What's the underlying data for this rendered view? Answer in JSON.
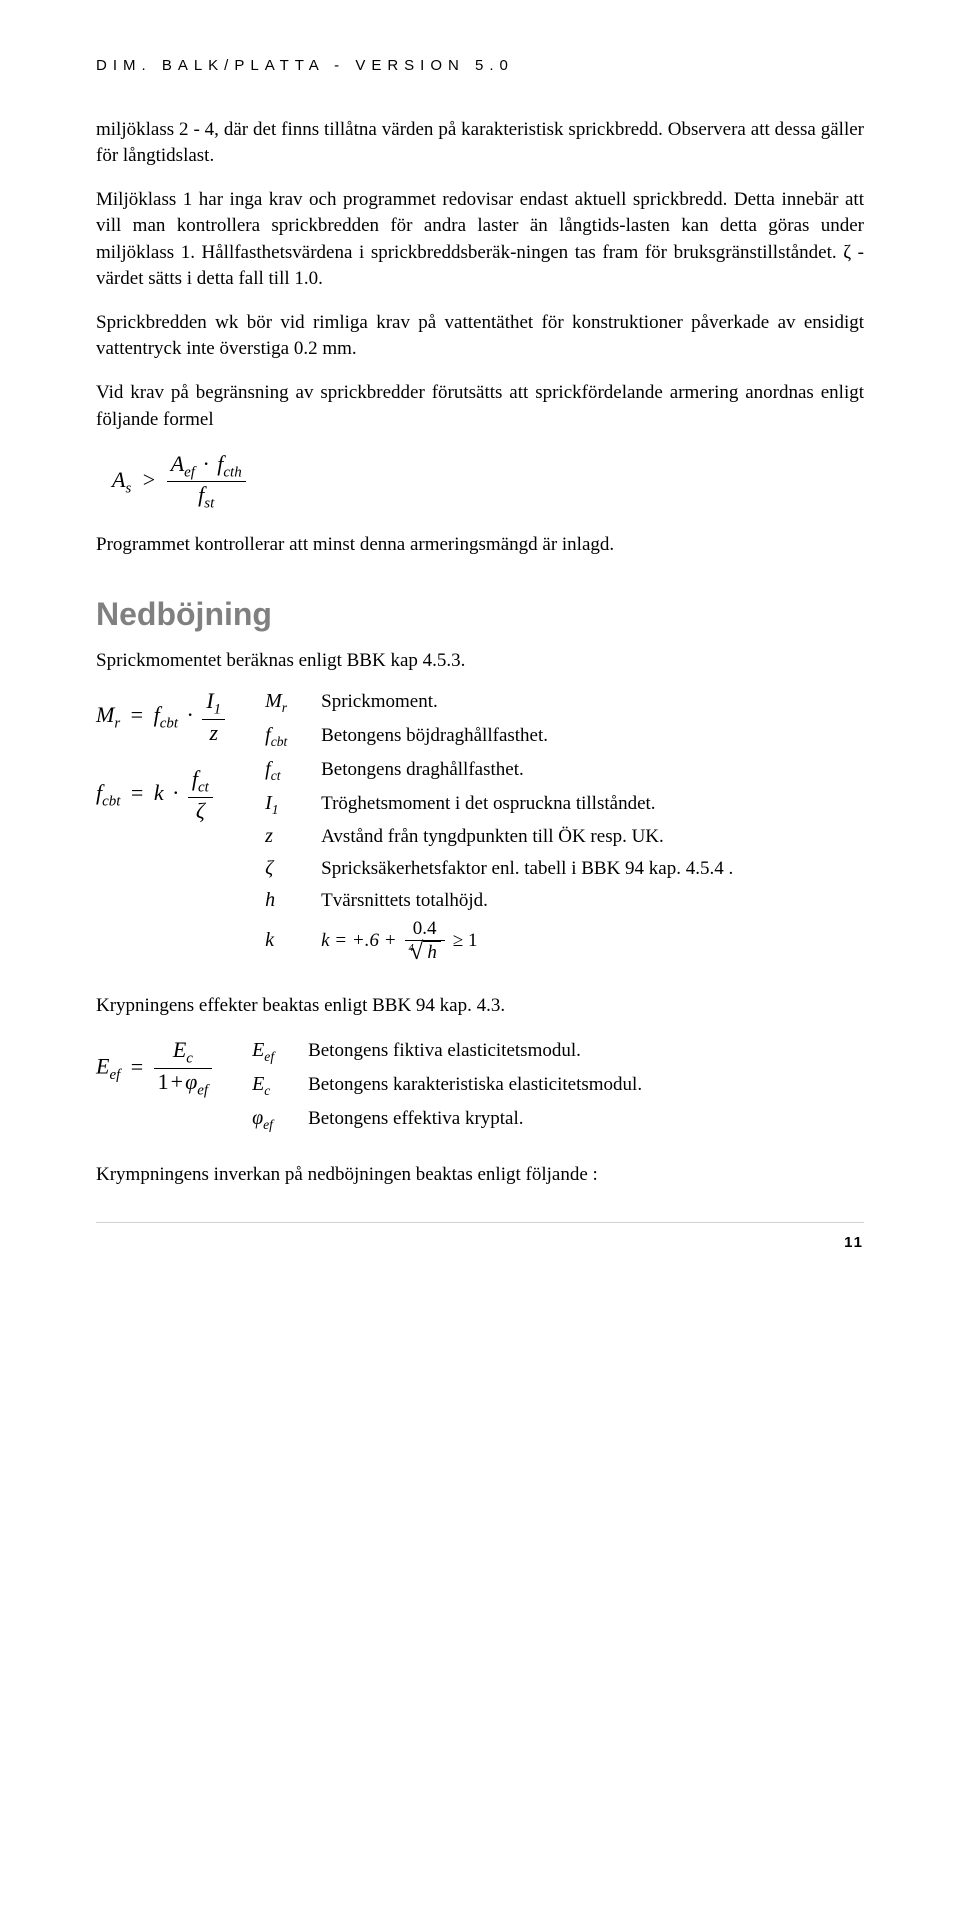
{
  "header": "DIM. BALK/PLATTA - VERSION 5.0",
  "para1": "miljöklass 2 - 4, där det finns tillåtna värden på karakteristisk sprickbredd. Observera att dessa gäller för långtidslast.",
  "para2": "Miljöklass 1 har inga krav och programmet redovisar endast aktuell sprickbredd. Detta innebär att vill man kontrollera sprickbredden för andra laster än långtids-lasten kan detta göras under miljöklass 1. Hållfasthetsvärdena i sprickbreddsberäk-ningen tas fram för bruksgränstillståndet. ζ -värdet sätts i detta fall till 1.0.",
  "para3": "Sprickbredden wk bör vid rimliga krav på vattentäthet för konstruktioner påverkade av ensidigt vattentryck inte överstiga 0.2 mm.",
  "para4": "Vid krav på begränsning av sprickbredder förutsätts att sprickfördelande armering anordnas enligt följande formel",
  "formula1": {
    "lhs_base": "A",
    "lhs_sub": "s",
    "op": ">",
    "num_a_base": "A",
    "num_a_sub": "ef",
    "num_b_base": "f",
    "num_b_sub": "cth",
    "den_base": "f",
    "den_sub": "st"
  },
  "para5": "Programmet kontrollerar att minst denna armeringsmängd är inlagd.",
  "section2": "Nedböjning",
  "para6": "Sprickmomentet beräknas enligt BBK kap 4.5.3.",
  "defs_left": {
    "eq1": {
      "M": "M",
      "r": "r",
      "eq": "=",
      "f": "f",
      "cbt": "cbt",
      "dot": "·",
      "I": "I",
      "one": "1",
      "z": "z"
    },
    "eq2": {
      "f": "f",
      "cbt": "cbt",
      "eq": "=",
      "k": "k",
      "dot": "·",
      "f2": "f",
      "ct": "ct",
      "zeta": "ζ"
    }
  },
  "defs_right": [
    {
      "sym": "M",
      "sub": "r",
      "desc": "Sprickmoment."
    },
    {
      "sym": "f",
      "sub": "cbt",
      "desc": "Betongens böjdraghållfasthet."
    },
    {
      "sym": "f",
      "sub": "ct",
      "desc": "Betongens draghållfasthet."
    },
    {
      "sym": "I",
      "sub": "1",
      "desc": "Tröghetsmoment i det ospruckna tillståndet."
    },
    {
      "sym": "z",
      "sub": "",
      "desc": "Avstånd från tyngdpunkten till ÖK resp. UK."
    },
    {
      "sym": "ζ",
      "sub": "",
      "desc": "Spricksäkerhetsfaktor enl. tabell i BBK 94 kap. 4.5.4 ."
    },
    {
      "sym": "h",
      "sub": "",
      "desc": "Tvärsnittets totalhöjd."
    }
  ],
  "k_row": {
    "sym": "k",
    "lead": "k = +.6 +",
    "num": "0.4",
    "rootidx": "4",
    "rootbody": "h",
    "tail": "≥ 1"
  },
  "para7": "Krypningens effekter beaktas enligt BBK 94 kap. 4.3.",
  "defs2_left": {
    "E": "E",
    "ef": "ef",
    "eq": "=",
    "Ec": "E",
    "c": "c",
    "one": "1",
    "plus": "+",
    "phi": "φ",
    "ef2": "ef"
  },
  "defs2_right": [
    {
      "sym": "E",
      "sub": "ef",
      "desc": "Betongens fiktiva elasticitetsmodul."
    },
    {
      "sym": "E",
      "sub": "c",
      "desc": "Betongens karakteristiska elasticitetsmodul."
    },
    {
      "sym": "φ",
      "sub": "ef",
      "desc": "Betongens effektiva kryptal."
    }
  ],
  "para8": "Krympningens inverkan på nedböjningen beaktas enligt följande :",
  "page_no": "11",
  "colors": {
    "text": "#000000",
    "gray": "#808080",
    "rule": "#d0d0d0",
    "bg": "#ffffff"
  }
}
